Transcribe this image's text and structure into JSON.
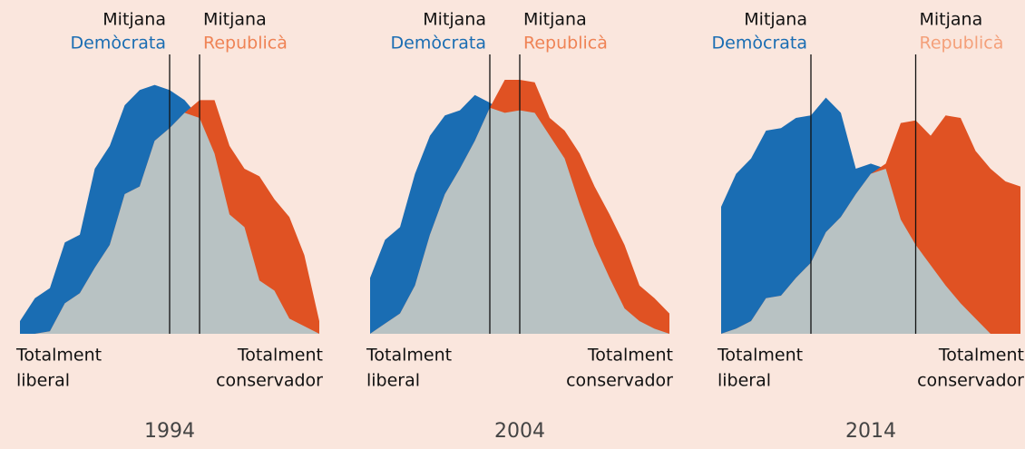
{
  "chart_data": [
    {
      "type": "area",
      "title": "1994",
      "xlim": [
        0,
        20
      ],
      "ylim": [
        0,
        100
      ],
      "overlap_color": "#b8c2c3",
      "series": [
        {
          "name": "Demòcrata",
          "color": "#1a6db3",
          "label_color": "#1a6db3",
          "median_label": "Mitjana",
          "median": 10,
          "values": [
            5,
            14,
            18,
            36,
            39,
            65,
            74,
            90,
            96,
            98,
            96,
            92,
            85,
            71,
            47,
            42,
            21,
            17,
            6,
            3,
            0
          ]
        },
        {
          "name": "Republicà",
          "color": "#e05223",
          "label_color": "#ef8355",
          "median_label": "Mitjana",
          "median": 12,
          "values": [
            0,
            0,
            1,
            12,
            16,
            26,
            35,
            55,
            58,
            76,
            81,
            87,
            92,
            92,
            74,
            65,
            62,
            53,
            46,
            31,
            5
          ]
        }
      ],
      "xlabel_left": [
        "Totalment",
        "liberal"
      ],
      "xlabel_right": [
        "Totalment",
        "conservador"
      ]
    },
    {
      "type": "area",
      "title": "2004",
      "xlim": [
        0,
        20
      ],
      "ylim": [
        0,
        100
      ],
      "overlap_color": "#b8c2c3",
      "series": [
        {
          "name": "Demòcrata",
          "color": "#1a6db3",
          "label_color": "#1a6db3",
          "median_label": "Mitjana",
          "median": 8,
          "values": [
            22,
            37,
            42,
            63,
            78,
            86,
            88,
            94,
            91,
            87,
            88,
            87,
            78,
            69,
            51,
            35,
            22,
            10,
            5,
            2,
            0
          ]
        },
        {
          "name": "Republicà",
          "color": "#e05223",
          "label_color": "#ef8355",
          "median_label": "Mitjana",
          "median": 10,
          "values": [
            0,
            4,
            8,
            19,
            39,
            55,
            65,
            76,
            89,
            100,
            100,
            99,
            85,
            80,
            71,
            58,
            47,
            35,
            19,
            14,
            8
          ]
        }
      ],
      "xlabel_left": [
        "Totalment",
        "liberal"
      ],
      "xlabel_right": [
        "Totalment",
        "conservador"
      ]
    },
    {
      "type": "area",
      "title": "2014",
      "xlim": [
        0,
        20
      ],
      "ylim": [
        0,
        100
      ],
      "overlap_color": "#b8c2c3",
      "series": [
        {
          "name": "Demòcrata",
          "color": "#1a6db3",
          "label_color": "#1a6db3",
          "median_label": "Mitjana",
          "median": 6,
          "values": [
            50,
            63,
            69,
            80,
            81,
            85,
            86,
            93,
            87,
            65,
            67,
            65,
            45,
            35,
            27,
            19,
            12,
            6,
            0,
            0,
            0
          ]
        },
        {
          "name": "Republicà",
          "color": "#e05223",
          "label_color": "#f4a07a",
          "median_label": "Mitjana",
          "median": 13,
          "values": [
            0,
            2,
            5,
            14,
            15,
            22,
            28,
            40,
            46,
            55,
            63,
            67,
            83,
            84,
            78,
            86,
            85,
            72,
            65,
            60,
            58
          ]
        }
      ],
      "xlabel_left": [
        "Totalment",
        "liberal"
      ],
      "xlabel_right": [
        "Totalment",
        "conservador"
      ]
    }
  ]
}
